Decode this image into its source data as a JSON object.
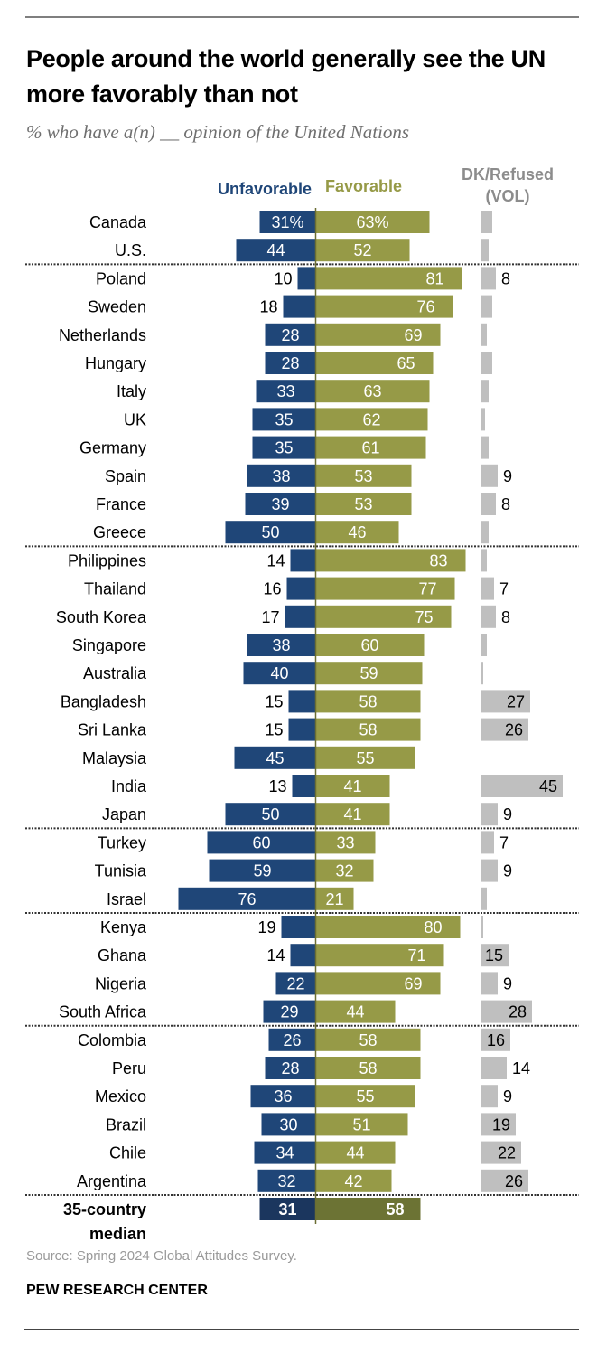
{
  "title": "People around the world generally see the UN more favorably than not",
  "subtitle": "% who have a(n) __ opinion of the United Nations",
  "legend": {
    "unfavorable": "Unfavorable",
    "favorable": "Favorable",
    "dk_line1": "DK/Refused",
    "dk_line2": "(VOL)"
  },
  "colors": {
    "unfavorable": "#1f4678",
    "favorable": "#969a47",
    "dk": "#bfbfbf",
    "median_unfavorable": "#1b365e",
    "median_favorable": "#6c7334",
    "axis": "#6b6e33"
  },
  "source": "Source: Spring 2024 Global Attitudes Survey.",
  "brand": "PEW RESEARCH CENTER",
  "chart_data": {
    "type": "bar",
    "orientation": "horizontal-diverging",
    "title": "People around the world generally see the UN more favorably than not",
    "subtitle": "% who have a(n) __ opinion of the United Nations",
    "xlabel": "",
    "ylabel": "",
    "unit": "%",
    "first_row_percent_sign": true,
    "series": [
      {
        "name": "Unfavorable",
        "key": "unfav"
      },
      {
        "name": "Favorable",
        "key": "fav"
      },
      {
        "name": "DK/Refused (VOL)",
        "key": "dk"
      }
    ],
    "groups": [
      {
        "rows": [
          {
            "country": "Canada",
            "unfav": 31,
            "fav": 63,
            "dk": 6,
            "dk_label": false
          },
          {
            "country": "U.S.",
            "unfav": 44,
            "fav": 52,
            "dk": 4,
            "dk_label": false
          }
        ]
      },
      {
        "rows": [
          {
            "country": "Poland",
            "unfav": 10,
            "fav": 81,
            "dk": 8,
            "dk_label": true
          },
          {
            "country": "Sweden",
            "unfav": 18,
            "fav": 76,
            "dk": 6,
            "dk_label": false
          },
          {
            "country": "Netherlands",
            "unfav": 28,
            "fav": 69,
            "dk": 3,
            "dk_label": false
          },
          {
            "country": "Hungary",
            "unfav": 28,
            "fav": 65,
            "dk": 6,
            "dk_label": false
          },
          {
            "country": "Italy",
            "unfav": 33,
            "fav": 63,
            "dk": 4,
            "dk_label": false
          },
          {
            "country": "UK",
            "unfav": 35,
            "fav": 62,
            "dk": 2,
            "dk_label": false
          },
          {
            "country": "Germany",
            "unfav": 35,
            "fav": 61,
            "dk": 4,
            "dk_label": false
          },
          {
            "country": "Spain",
            "unfav": 38,
            "fav": 53,
            "dk": 9,
            "dk_label": true
          },
          {
            "country": "France",
            "unfav": 39,
            "fav": 53,
            "dk": 8,
            "dk_label": true
          },
          {
            "country": "Greece",
            "unfav": 50,
            "fav": 46,
            "dk": 4,
            "dk_label": false
          }
        ]
      },
      {
        "rows": [
          {
            "country": "Philippines",
            "unfav": 14,
            "fav": 83,
            "dk": 3,
            "dk_label": false
          },
          {
            "country": "Thailand",
            "unfav": 16,
            "fav": 77,
            "dk": 7,
            "dk_label": true
          },
          {
            "country": "South Korea",
            "unfav": 17,
            "fav": 75,
            "dk": 8,
            "dk_label": true
          },
          {
            "country": "Singapore",
            "unfav": 38,
            "fav": 60,
            "dk": 3,
            "dk_label": false
          },
          {
            "country": "Australia",
            "unfav": 40,
            "fav": 59,
            "dk": 1,
            "dk_label": false
          },
          {
            "country": "Bangladesh",
            "unfav": 15,
            "fav": 58,
            "dk": 27,
            "dk_label": true
          },
          {
            "country": "Sri Lanka",
            "unfav": 15,
            "fav": 58,
            "dk": 26,
            "dk_label": true
          },
          {
            "country": "Malaysia",
            "unfav": 45,
            "fav": 55,
            "dk": 0,
            "dk_label": false
          },
          {
            "country": "India",
            "unfav": 13,
            "fav": 41,
            "dk": 45,
            "dk_label": true
          },
          {
            "country": "Japan",
            "unfav": 50,
            "fav": 41,
            "dk": 9,
            "dk_label": true
          }
        ]
      },
      {
        "rows": [
          {
            "country": "Turkey",
            "unfav": 60,
            "fav": 33,
            "dk": 7,
            "dk_label": true
          },
          {
            "country": "Tunisia",
            "unfav": 59,
            "fav": 32,
            "dk": 9,
            "dk_label": true
          },
          {
            "country": "Israel",
            "unfav": 76,
            "fav": 21,
            "dk": 3,
            "dk_label": false
          }
        ]
      },
      {
        "rows": [
          {
            "country": "Kenya",
            "unfav": 19,
            "fav": 80,
            "dk": 1,
            "dk_label": false
          },
          {
            "country": "Ghana",
            "unfav": 14,
            "fav": 71,
            "dk": 15,
            "dk_label": true
          },
          {
            "country": "Nigeria",
            "unfav": 22,
            "fav": 69,
            "dk": 9,
            "dk_label": true
          },
          {
            "country": "South Africa",
            "unfav": 29,
            "fav": 44,
            "dk": 28,
            "dk_label": true
          }
        ]
      },
      {
        "rows": [
          {
            "country": "Colombia",
            "unfav": 26,
            "fav": 58,
            "dk": 16,
            "dk_label": true
          },
          {
            "country": "Peru",
            "unfav": 28,
            "fav": 58,
            "dk": 14,
            "dk_label": true
          },
          {
            "country": "Mexico",
            "unfav": 36,
            "fav": 55,
            "dk": 9,
            "dk_label": true
          },
          {
            "country": "Brazil",
            "unfav": 30,
            "fav": 51,
            "dk": 19,
            "dk_label": true
          },
          {
            "country": "Chile",
            "unfav": 34,
            "fav": 44,
            "dk": 22,
            "dk_label": true
          },
          {
            "country": "Argentina",
            "unfav": 32,
            "fav": 42,
            "dk": 26,
            "dk_label": true
          }
        ]
      }
    ],
    "median": {
      "label_line1": "35-country",
      "label_line2": "median",
      "unfav": 31,
      "fav": 58
    }
  }
}
